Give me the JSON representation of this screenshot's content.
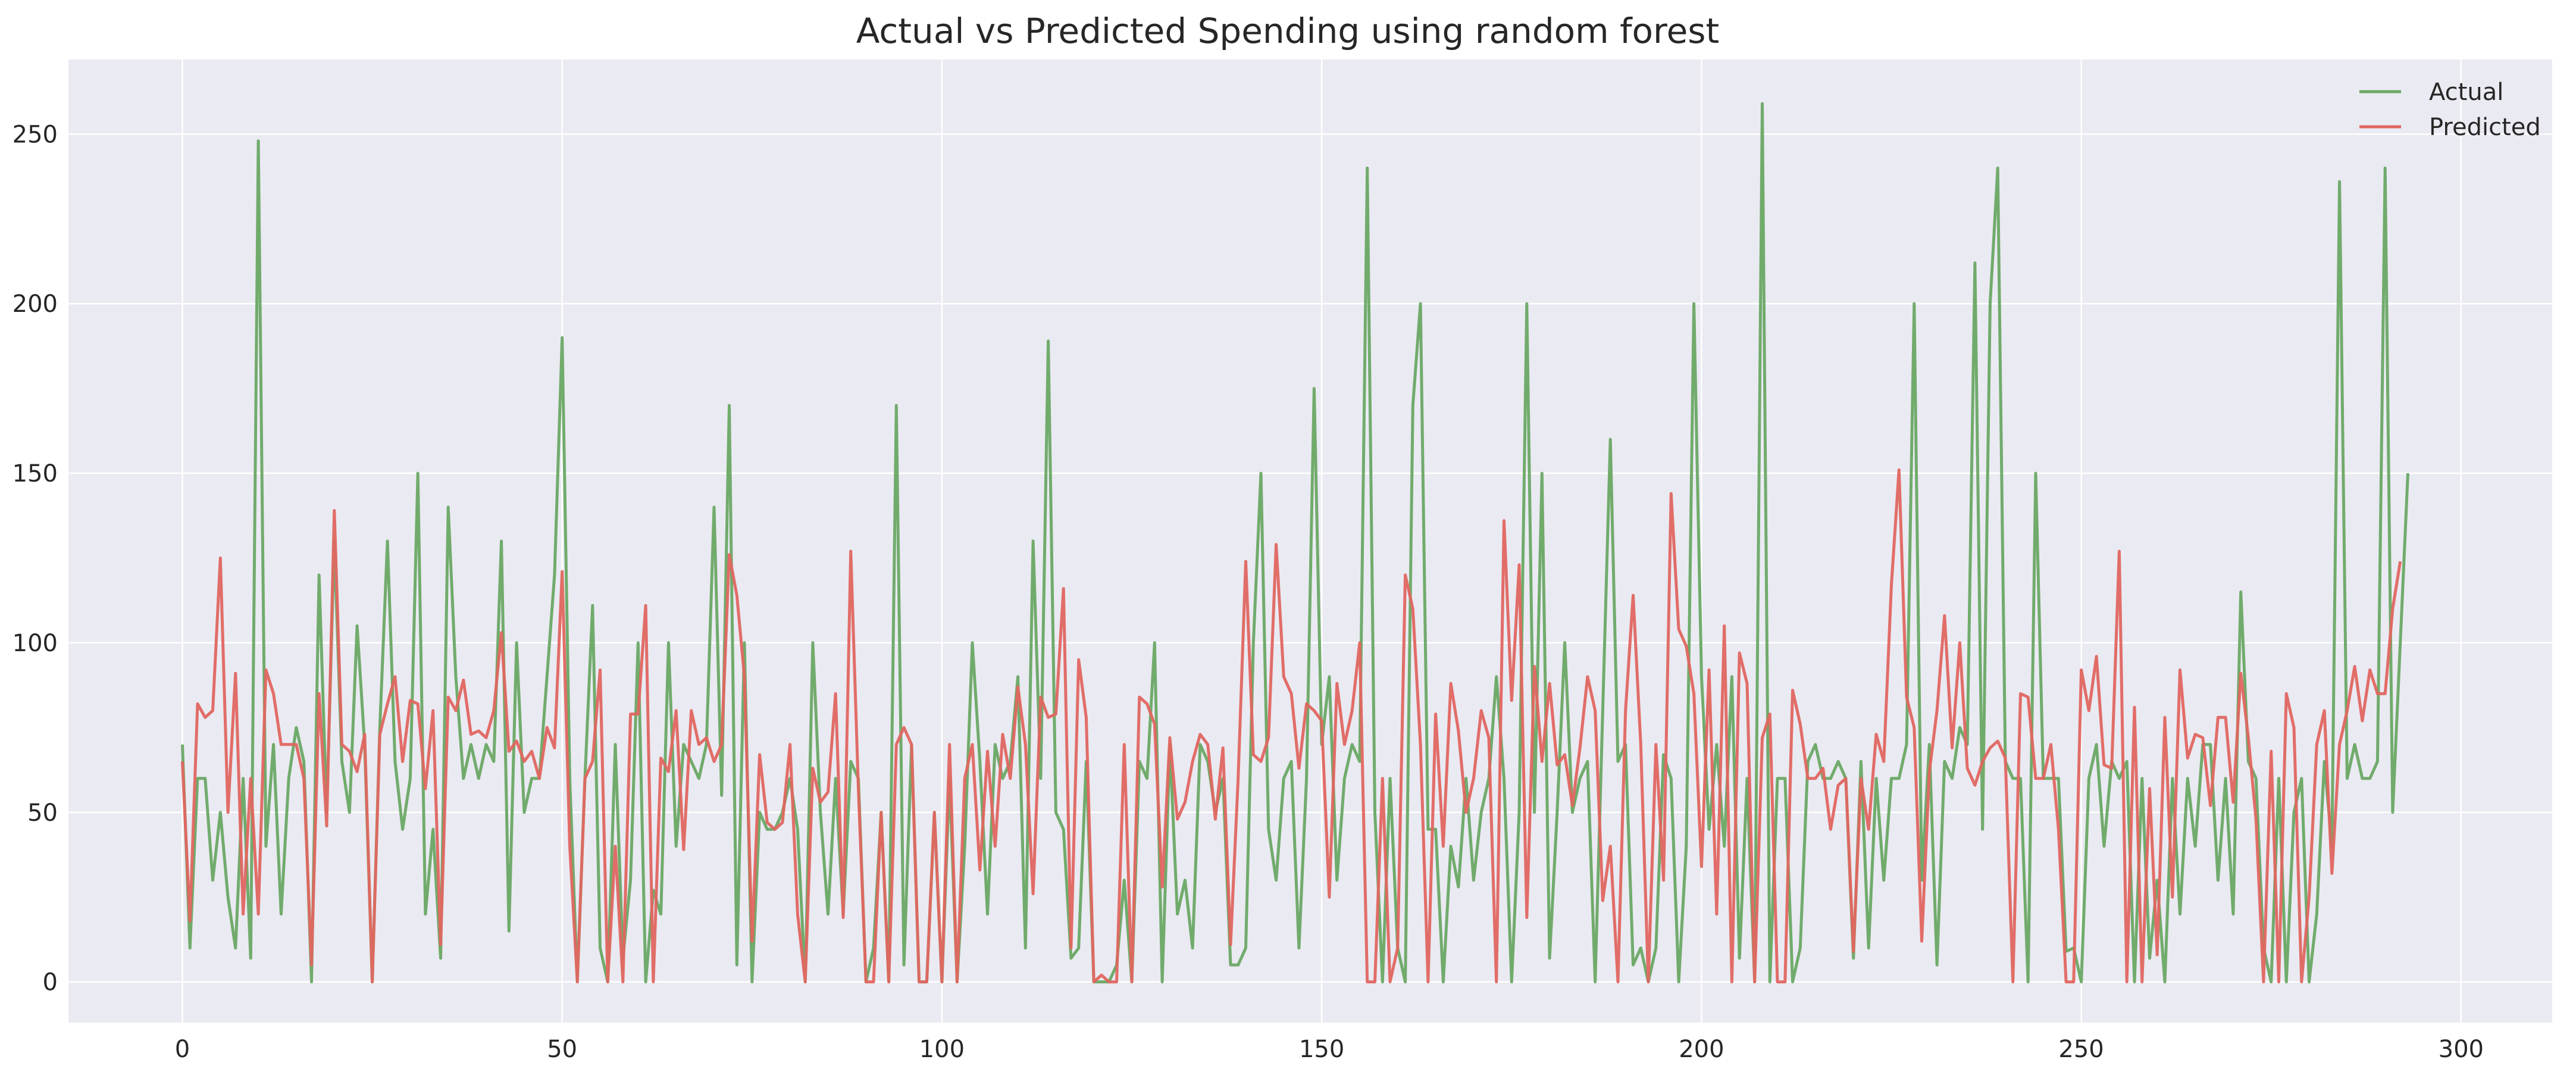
{
  "chart_data": {
    "type": "line",
    "title": "Actual vs Predicted Spending using random forest",
    "xlabel": "",
    "ylabel": "",
    "xlim": [
      -15,
      312
    ],
    "ylim": [
      -12,
      272
    ],
    "xticks": [
      0,
      50,
      100,
      150,
      200,
      250,
      300
    ],
    "yticks": [
      0,
      50,
      100,
      150,
      200,
      250
    ],
    "grid": true,
    "legend_position": "top-right",
    "series": [
      {
        "name": "Actual",
        "color": "#6aa864",
        "values": [
          70,
          10,
          60,
          60,
          30,
          50,
          25,
          10,
          60,
          7,
          248,
          40,
          70,
          20,
          60,
          75,
          65,
          0,
          120,
          50,
          130,
          65,
          50,
          105,
          70,
          0,
          75,
          130,
          65,
          45,
          60,
          150,
          20,
          45,
          7,
          140,
          90,
          60,
          70,
          60,
          70,
          65,
          130,
          15,
          100,
          50,
          60,
          60,
          90,
          120,
          190,
          60,
          0,
          60,
          111,
          10,
          0,
          70,
          7,
          30,
          100,
          0,
          27,
          20,
          100,
          40,
          70,
          65,
          60,
          70,
          140,
          55,
          170,
          5,
          100,
          0,
          50,
          45,
          45,
          50,
          60,
          45,
          0,
          100,
          50,
          20,
          60,
          20,
          65,
          60,
          0,
          10,
          50,
          0,
          170,
          5,
          70,
          0,
          0,
          50,
          0,
          60,
          0,
          40,
          100,
          65,
          20,
          70,
          60,
          65,
          90,
          10,
          130,
          60,
          189,
          50,
          45,
          7,
          10,
          65,
          0,
          0,
          0,
          5,
          30,
          0,
          65,
          60,
          100,
          0,
          70,
          20,
          30,
          10,
          70,
          65,
          50,
          60,
          5,
          5,
          10,
          100,
          150,
          45,
          30,
          60,
          65,
          10,
          60,
          175,
          70,
          90,
          30,
          60,
          70,
          65,
          240,
          50,
          0,
          60,
          10,
          0,
          170,
          200,
          45,
          45,
          0,
          40,
          28,
          60,
          30,
          50,
          60,
          90,
          60,
          0,
          50,
          200,
          50,
          150,
          7,
          50,
          100,
          50,
          60,
          65,
          0,
          80,
          160,
          65,
          70,
          5,
          10,
          0,
          10,
          67,
          60,
          0,
          40,
          200,
          90,
          45,
          70,
          40,
          90,
          7,
          60,
          0,
          259,
          0,
          60,
          60,
          0,
          10,
          65,
          70,
          60,
          60,
          65,
          60,
          7,
          65,
          10,
          60,
          30,
          60,
          60,
          70,
          200,
          30,
          70,
          5,
          65,
          60,
          75,
          70,
          212,
          45,
          200,
          240,
          65,
          60,
          60,
          0,
          150,
          60,
          60,
          60,
          9,
          10,
          0,
          60,
          70,
          40,
          65,
          60,
          65,
          0,
          60,
          7,
          30,
          0,
          60,
          20,
          60,
          40,
          70,
          70,
          30,
          60,
          20,
          115,
          65,
          60,
          10,
          0,
          60,
          0,
          50,
          60,
          0,
          20,
          65,
          40,
          236,
          60,
          70,
          60,
          60,
          65,
          240,
          50,
          100,
          150
        ]
      },
      {
        "name": "Predicted",
        "color": "#e06660",
        "values": [
          65,
          18,
          82,
          78,
          80,
          125,
          50,
          91,
          20,
          60,
          20,
          92,
          85,
          70,
          70,
          70,
          60,
          5,
          85,
          46,
          139,
          70,
          68,
          62,
          73,
          0,
          73,
          82,
          90,
          65,
          83,
          82,
          57,
          80,
          11,
          84,
          80,
          89,
          73,
          74,
          72,
          80,
          103,
          68,
          71,
          65,
          68,
          60,
          75,
          69,
          121,
          40,
          0,
          60,
          65,
          92,
          0,
          40,
          0,
          79,
          79,
          111,
          0,
          66,
          62,
          80,
          39,
          80,
          70,
          72,
          65,
          70,
          126,
          114,
          90,
          12,
          67,
          47,
          45,
          47,
          70,
          20,
          0,
          63,
          53,
          56,
          85,
          19,
          127,
          57,
          0,
          0,
          50,
          0,
          70,
          75,
          70,
          0,
          0,
          50,
          0,
          70,
          0,
          60,
          70,
          33,
          68,
          40,
          73,
          60,
          87,
          70,
          26,
          84,
          78,
          79,
          116,
          10,
          95,
          78,
          0,
          2,
          0,
          0,
          70,
          0,
          84,
          82,
          76,
          28,
          72,
          48,
          53,
          65,
          73,
          70,
          48,
          69,
          11,
          60,
          124,
          67,
          65,
          72,
          129,
          90,
          85,
          63,
          82,
          80,
          77,
          25,
          88,
          70,
          80,
          100,
          0,
          0,
          60,
          0,
          10,
          120,
          110,
          70,
          0,
          79,
          40,
          88,
          74,
          50,
          60,
          80,
          72,
          0,
          136,
          83,
          123,
          19,
          93,
          65,
          88,
          64,
          67,
          52,
          69,
          90,
          80,
          24,
          40,
          0,
          80,
          114,
          70,
          0,
          70,
          30,
          144,
          104,
          99,
          85,
          34,
          92,
          20,
          105,
          0,
          97,
          88,
          0,
          72,
          79,
          0,
          0,
          86,
          76,
          60,
          60,
          63,
          45,
          58,
          60,
          9,
          60,
          45,
          73,
          65,
          117,
          151,
          84,
          75,
          12,
          62,
          80,
          108,
          69,
          100,
          63,
          58,
          65,
          69,
          71,
          66,
          0,
          85,
          84,
          60,
          60,
          70,
          45,
          0,
          0,
          92,
          80,
          96,
          64,
          63,
          127,
          0,
          81,
          0,
          57,
          8,
          78,
          25,
          92,
          66,
          73,
          72,
          52,
          78,
          78,
          53,
          91,
          72,
          48,
          0,
          68,
          0,
          85,
          75,
          0,
          25,
          70,
          80,
          32,
          70,
          80,
          93,
          77,
          92,
          85,
          85,
          110,
          124
        ]
      }
    ]
  }
}
